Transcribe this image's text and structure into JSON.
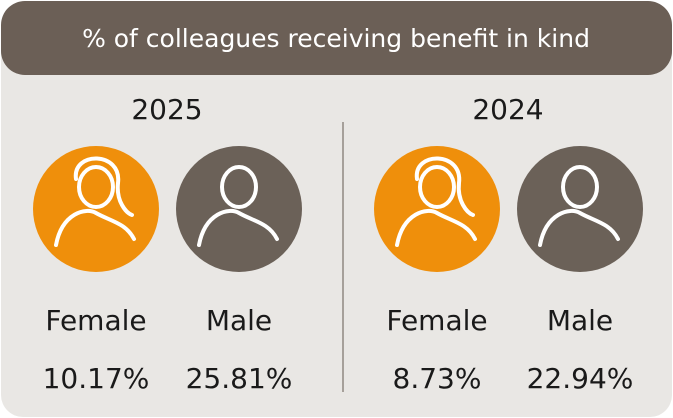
{
  "header": {
    "title": "% of colleagues receiving benefit in kind"
  },
  "panels": [
    {
      "year": "2025",
      "items": [
        {
          "label": "Female",
          "value": "10.17%"
        },
        {
          "label": "Male",
          "value": "25.81%"
        }
      ]
    },
    {
      "year": "2024",
      "items": [
        {
          "label": "Female",
          "value": "8.73%"
        },
        {
          "label": "Male",
          "value": "22.94%"
        }
      ]
    }
  ]
}
